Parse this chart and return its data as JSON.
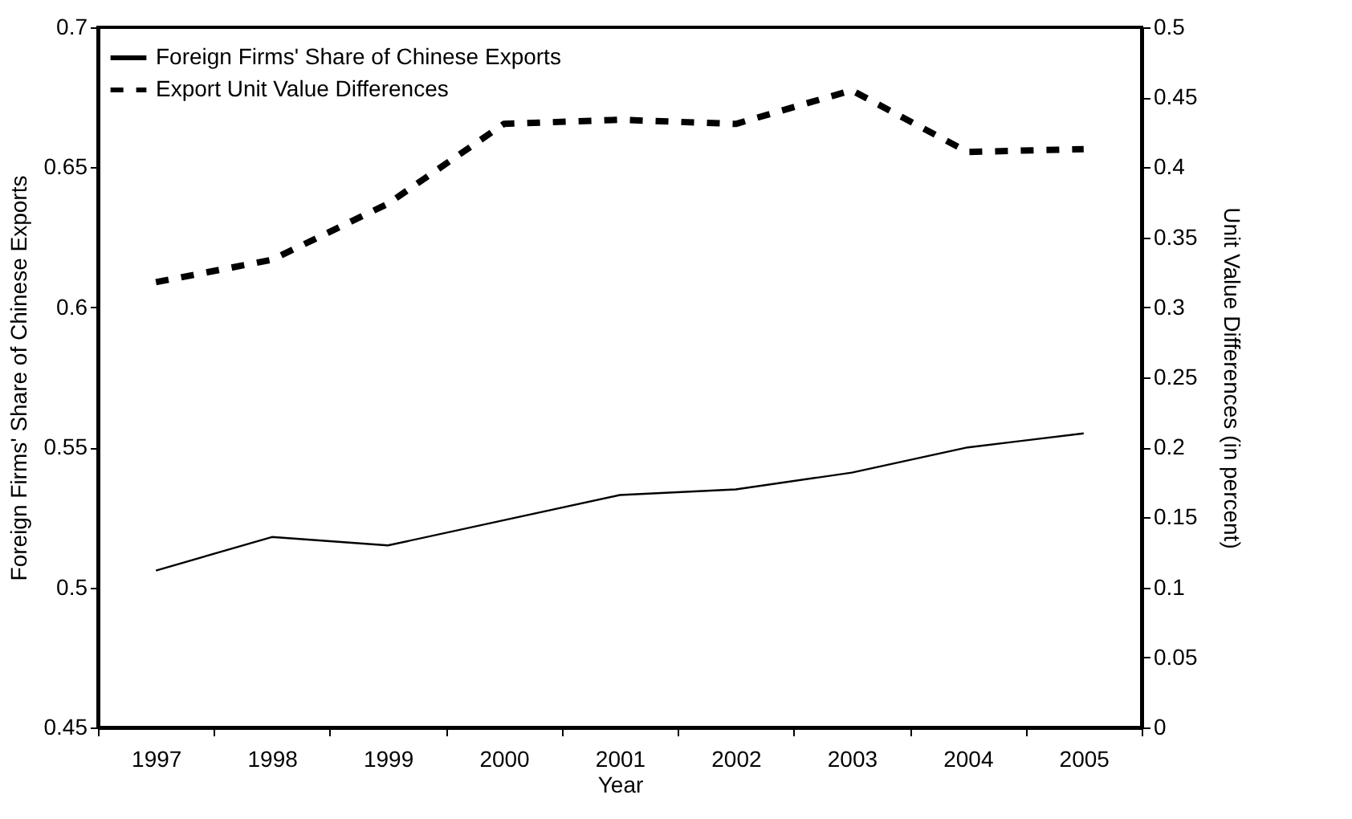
{
  "chart_data": {
    "type": "line",
    "xlabel": "Year",
    "ylabel": "Foreign Firms' Share of Chinese Exports",
    "y2label": "Unit Value Differences (in percent)",
    "categories": [
      "1997",
      "1998",
      "1999",
      "2000",
      "2001",
      "2002",
      "2003",
      "2004",
      "2005"
    ],
    "series": [
      {
        "name": "Foreign Firms' Share of Chinese Exports",
        "color": "#000000",
        "line_style": "solid",
        "values": [
          0.506,
          0.518,
          0.515,
          0.524,
          0.533,
          0.535,
          0.541,
          0.55,
          0.555
        ]
      },
      {
        "name": "Export Unit Value Differences",
        "color": "#000000",
        "line_style": "dashed",
        "axis": "y2",
        "values": [
          0.318,
          0.334,
          0.374,
          0.431,
          0.434,
          0.431,
          0.455,
          0.411,
          0.413
        ]
      }
    ],
    "ylim": [
      0.45,
      0.7
    ],
    "yticks": [
      0.45,
      0.5,
      0.55,
      0.6,
      0.65,
      0.7
    ],
    "y2lim": [
      0,
      0.5
    ],
    "y2ticks": [
      0,
      0.05,
      0.1,
      0.15,
      0.2,
      0.25,
      0.3,
      0.35,
      0.4,
      0.45,
      0.5
    ],
    "grid": false,
    "legend": "top left",
    "marker": "none"
  }
}
